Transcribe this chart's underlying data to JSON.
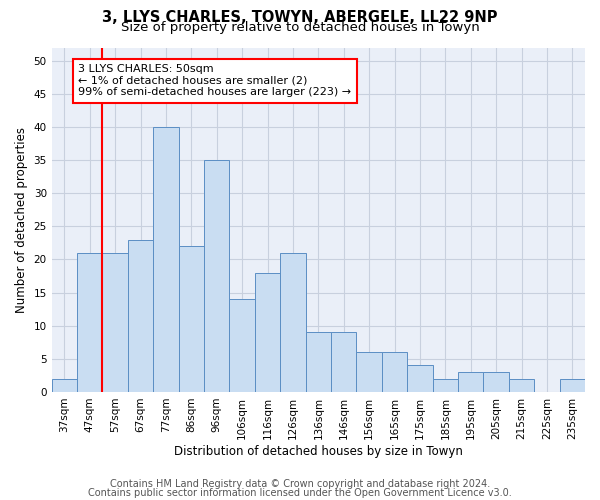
{
  "title_line1": "3, LLYS CHARLES, TOWYN, ABERGELE, LL22 9NP",
  "title_line2": "Size of property relative to detached houses in Towyn",
  "xlabel": "Distribution of detached houses by size in Towyn",
  "ylabel": "Number of detached properties",
  "categories": [
    "37sqm",
    "47sqm",
    "57sqm",
    "67sqm",
    "77sqm",
    "86sqm",
    "96sqm",
    "106sqm",
    "116sqm",
    "126sqm",
    "136sqm",
    "146sqm",
    "156sqm",
    "165sqm",
    "175sqm",
    "185sqm",
    "195sqm",
    "205sqm",
    "215sqm",
    "225sqm",
    "235sqm"
  ],
  "values": [
    2,
    21,
    21,
    23,
    40,
    22,
    35,
    14,
    18,
    21,
    9,
    9,
    6,
    6,
    4,
    2,
    3,
    3,
    2,
    0,
    2
  ],
  "bar_color": "#c9ddf2",
  "bar_edge_color": "#5b8ec4",
  "bar_edge_width": 0.7,
  "vline_color": "red",
  "annotation_text": "3 LLYS CHARLES: 50sqm\n← 1% of detached houses are smaller (2)\n99% of semi-detached houses are larger (223) →",
  "annotation_box_color": "white",
  "annotation_box_edge_color": "red",
  "ylim": [
    0,
    52
  ],
  "yticks": [
    0,
    5,
    10,
    15,
    20,
    25,
    30,
    35,
    40,
    45,
    50
  ],
  "grid_color": "#c8d0de",
  "background_color": "#eaeff8",
  "footer_line1": "Contains HM Land Registry data © Crown copyright and database right 2024.",
  "footer_line2": "Contains public sector information licensed under the Open Government Licence v3.0.",
  "title_fontsize": 10.5,
  "subtitle_fontsize": 9.5,
  "axis_label_fontsize": 8.5,
  "tick_fontsize": 7.5,
  "annotation_fontsize": 8,
  "footer_fontsize": 7
}
